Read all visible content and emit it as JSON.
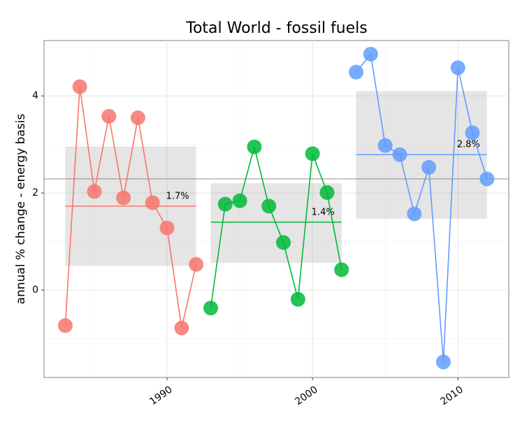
{
  "chart_data": {
    "type": "line",
    "title": "Total World - fossil fuels",
    "y_label": "annual % change - energy basis",
    "xlim": [
      1981.54,
      2013.5
    ],
    "xticks": [
      1990,
      2000,
      2010
    ],
    "minor_xticks": [
      1985,
      1995,
      2005
    ],
    "ylim": [
      -1.8,
      5.14
    ],
    "yticks": [
      0,
      2,
      4
    ],
    "minor_yticks": [
      -1,
      1,
      3,
      5
    ],
    "grid": true,
    "reference_line": 2.29,
    "series": [
      {
        "color": "#F8766D",
        "x": [
          1983,
          1984,
          1985,
          1986,
          1987,
          1988,
          1989,
          1990,
          1991,
          1992
        ],
        "values": [
          -0.73,
          4.19,
          2.03,
          3.58,
          1.9,
          3.55,
          1.8,
          1.28,
          -0.78,
          0.53
        ],
        "mean": 1.73,
        "mean_label": "1.7%",
        "band": [
          0.5,
          2.96
        ]
      },
      {
        "color": "#00BA38",
        "x": [
          1993,
          1994,
          1995,
          1996,
          1997,
          1998,
          1999,
          2000,
          2001,
          2002
        ],
        "values": [
          -0.37,
          1.77,
          1.84,
          2.95,
          1.73,
          0.98,
          -0.19,
          2.81,
          2.01,
          0.42
        ],
        "mean": 1.4,
        "mean_label": "1.4%",
        "band": [
          0.56,
          2.2
        ]
      },
      {
        "color": "#619CFF",
        "x": [
          2003,
          2004,
          2005,
          2006,
          2007,
          2008,
          2009,
          2010,
          2011,
          2012
        ],
        "values": [
          4.49,
          4.86,
          2.98,
          2.79,
          1.57,
          2.53,
          -1.48,
          4.58,
          3.24,
          2.29
        ],
        "mean": 2.79,
        "mean_label": "2.8%",
        "band": [
          1.47,
          4.1
        ]
      }
    ]
  }
}
